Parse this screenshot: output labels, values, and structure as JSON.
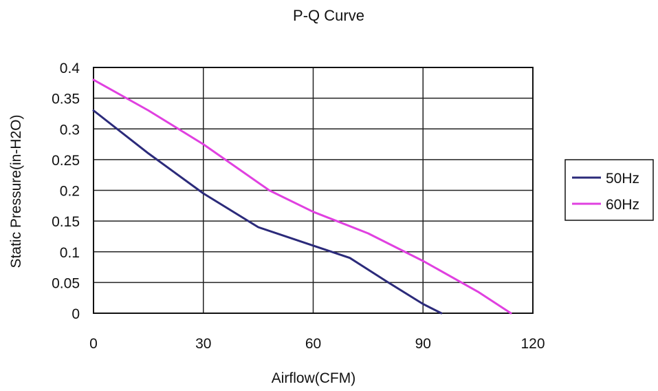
{
  "chart_data": {
    "type": "line",
    "title": "P-Q Curve",
    "xlabel": "Airflow(CFM)",
    "ylabel": "Static Pressure(in-H2O)",
    "xlim": [
      0,
      120
    ],
    "ylim": [
      0,
      0.4
    ],
    "x_ticks": [
      "0",
      "30",
      "60",
      "90",
      "120"
    ],
    "y_ticks": [
      "0",
      "0.05",
      "0.1",
      "0.15",
      "0.2",
      "0.25",
      "0.3",
      "0.35",
      "0.4"
    ],
    "grid": true,
    "legend_position": "right",
    "series": [
      {
        "name": "50Hz",
        "color": "#2b2a7a",
        "points": [
          [
            0,
            0.33
          ],
          [
            15,
            0.26
          ],
          [
            30,
            0.195
          ],
          [
            45,
            0.14
          ],
          [
            60,
            0.11
          ],
          [
            70,
            0.09
          ],
          [
            80,
            0.052
          ],
          [
            90,
            0.015
          ],
          [
            95,
            0.0
          ]
        ]
      },
      {
        "name": "60Hz",
        "color": "#e040e0",
        "points": [
          [
            0,
            0.38
          ],
          [
            15,
            0.33
          ],
          [
            30,
            0.275
          ],
          [
            48,
            0.2
          ],
          [
            60,
            0.165
          ],
          [
            75,
            0.13
          ],
          [
            90,
            0.085
          ],
          [
            105,
            0.035
          ],
          [
            114,
            0.0
          ]
        ]
      }
    ]
  }
}
